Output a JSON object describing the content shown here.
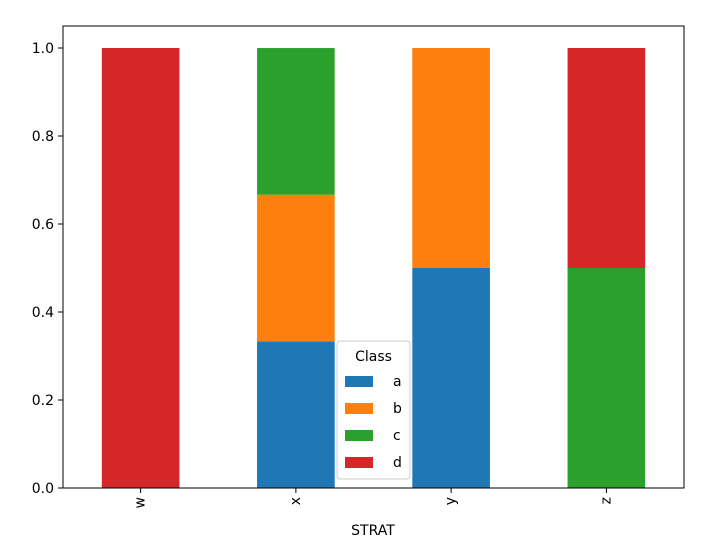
{
  "chart_data": {
    "type": "bar",
    "stacked": true,
    "categories": [
      "w",
      "x",
      "y",
      "z"
    ],
    "series": [
      {
        "name": "a",
        "color": "#1f77b4",
        "values": [
          0,
          0.3333,
          0.5,
          0
        ]
      },
      {
        "name": "b",
        "color": "#ff7f0e",
        "values": [
          0,
          0.3333,
          0.5,
          0
        ]
      },
      {
        "name": "c",
        "color": "#2ca02c",
        "values": [
          0,
          0.3333,
          0,
          0.5
        ]
      },
      {
        "name": "d",
        "color": "#d62728",
        "values": [
          1.0,
          0,
          0,
          0.5
        ]
      }
    ],
    "xlabel": "STRAT",
    "ylabel": "",
    "ylim": [
      0,
      1.05
    ],
    "yticks": [
      "0.0",
      "0.2",
      "0.4",
      "0.6",
      "0.8",
      "1.0"
    ],
    "legend": {
      "title": "Class",
      "position": "bottom-center"
    },
    "grid": false
  }
}
